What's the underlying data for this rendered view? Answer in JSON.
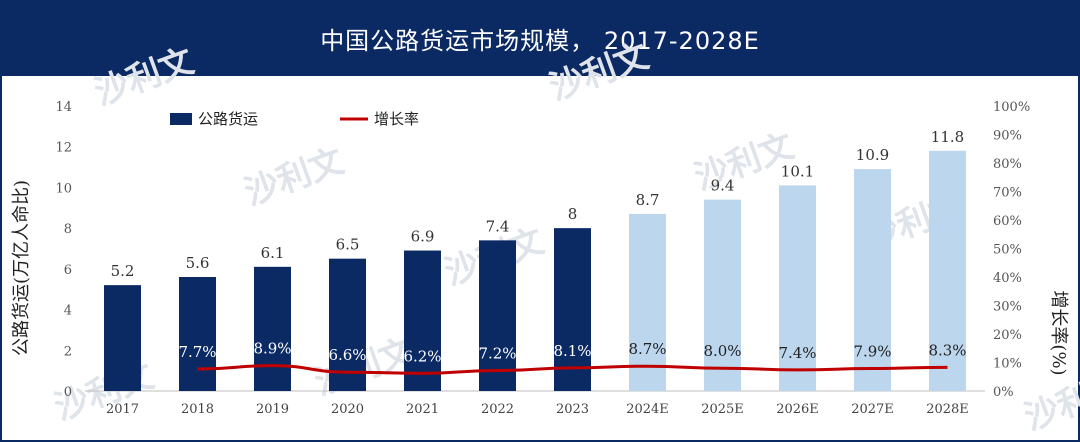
{
  "title": "中国公路货运市场规模， 2017-2028E",
  "chart_data": {
    "type": "bar",
    "categories": [
      "2017",
      "2018",
      "2019",
      "2020",
      "2021",
      "2022",
      "2023",
      "2024E",
      "2025E",
      "2026E",
      "2027E",
      "2028E"
    ],
    "series": [
      {
        "name": "公路货运",
        "type": "bar",
        "axis": "left",
        "values": [
          5.2,
          5.6,
          6.1,
          6.5,
          6.9,
          7.4,
          8,
          8.7,
          9.4,
          10.1,
          10.9,
          11.8
        ],
        "labels": [
          "5.2",
          "5.6",
          "6.1",
          "6.5",
          "6.9",
          "7.4",
          "8",
          "8.7",
          "9.4",
          "10.1",
          "10.9",
          "11.8"
        ],
        "color_actual": "#0b2a64",
        "color_forecast": "#bcd6ee",
        "forecast_from_index": 7
      },
      {
        "name": "增长率",
        "type": "line",
        "axis": "right",
        "values": [
          null,
          7.7,
          8.9,
          6.6,
          6.2,
          7.2,
          8.1,
          8.7,
          8.0,
          7.4,
          7.9,
          8.3
        ],
        "labels": [
          "",
          "7.7%",
          "8.9%",
          "6.6%",
          "6.2%",
          "7.2%",
          "8.1%",
          "8.7%",
          "8.0%",
          "7.4%",
          "7.9%",
          "8.3%"
        ],
        "color": "#c00000"
      }
    ],
    "ylabel": "公路货运(万亿人命比)",
    "ylabel_right": "增长率(%)",
    "ylim": [
      0,
      14
    ],
    "yticks": [
      "0",
      "2",
      "4",
      "6",
      "8",
      "10",
      "12",
      "14"
    ],
    "ylim_right": [
      0,
      100
    ],
    "yticks_right": [
      "0%",
      "10%",
      "20%",
      "30%",
      "40%",
      "50%",
      "60%",
      "70%",
      "80%",
      "90%",
      "100%"
    ],
    "legend_position": "top-left",
    "grid": false
  },
  "watermark": "沙利文"
}
